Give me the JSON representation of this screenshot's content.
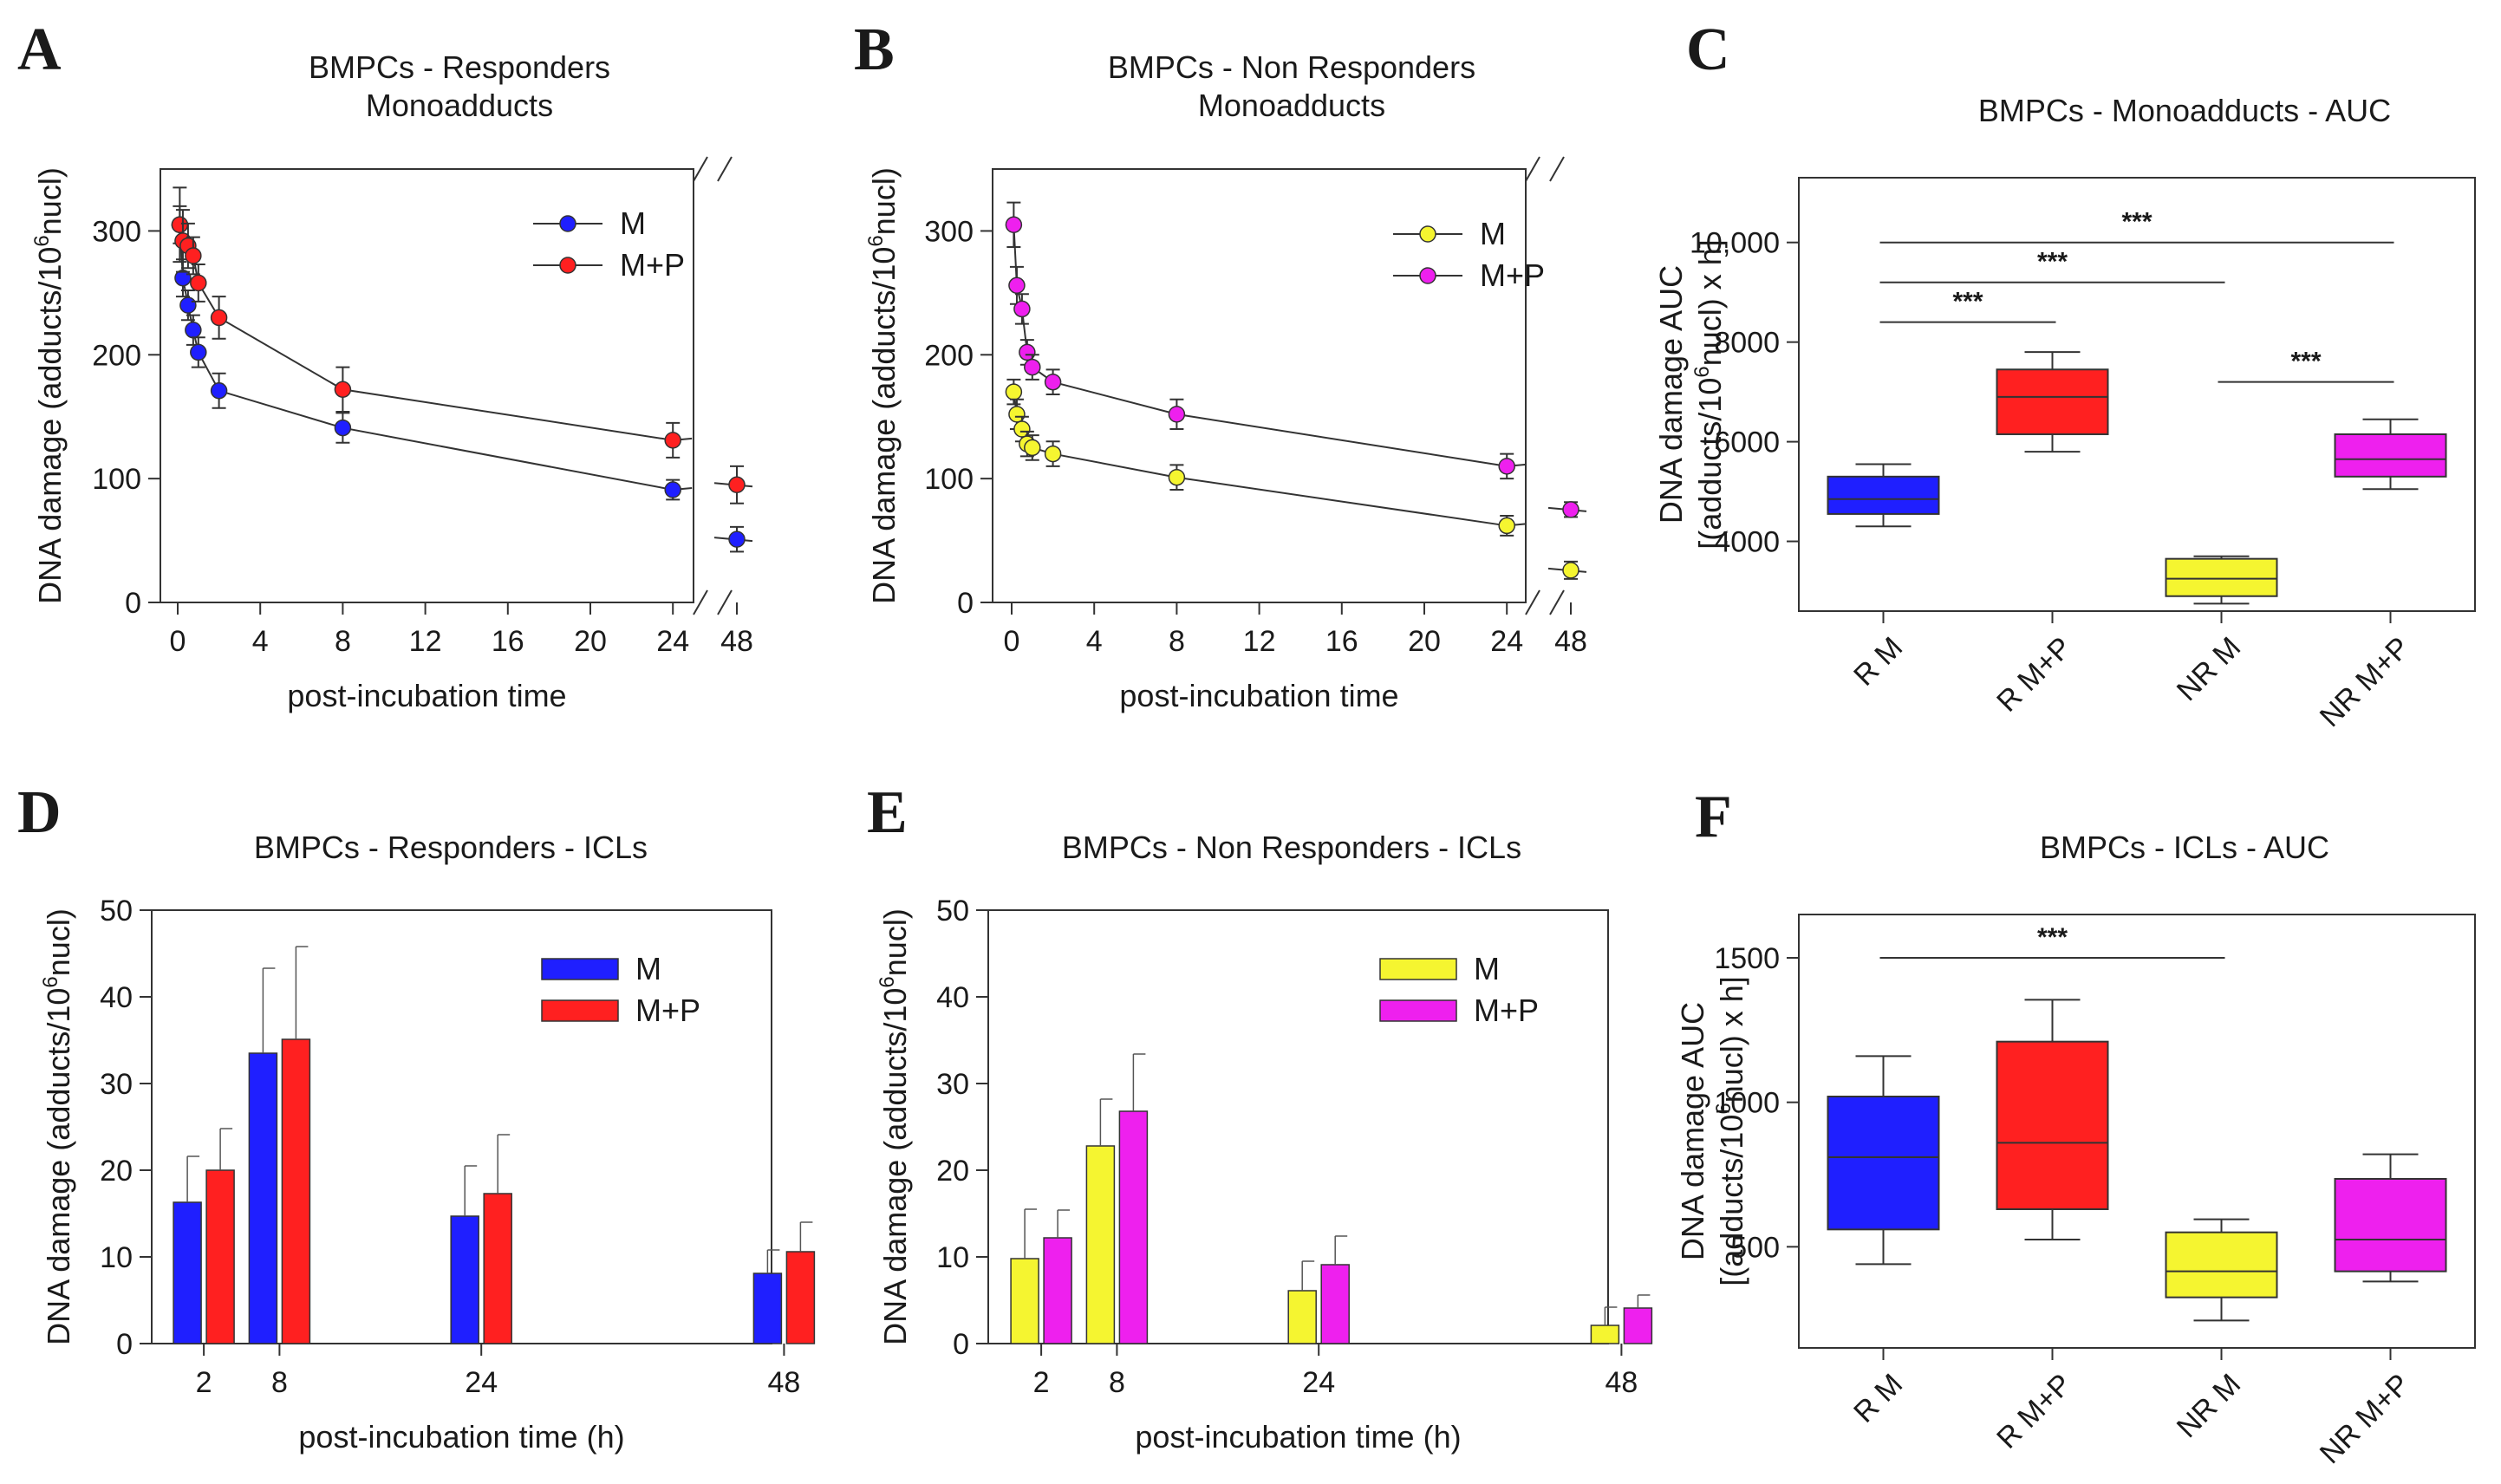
{
  "panels": {
    "A": {
      "letter": "A",
      "chart_data": {
        "type": "line",
        "title": [
          "BMPCs - Responders",
          "Monoadducts"
        ],
        "xlabel": "post-incubation time",
        "ylabel_parts": [
          "DNA damage (adducts/10",
          "6",
          "nucl)"
        ],
        "xticks": [
          "0",
          "4",
          "8",
          "12",
          "16",
          "20",
          "24",
          "48"
        ],
        "yticks": [
          "0",
          "100",
          "200",
          "300"
        ],
        "ylim": [
          0,
          350
        ],
        "x_break_after": 24,
        "series": [
          {
            "name": "M",
            "color": "#1f1fff",
            "x": [
              0.1,
              0.25,
              0.5,
              0.75,
              1,
              2,
              8,
              24
            ],
            "y": [
              305,
              262,
              240,
              220,
              202,
              171,
              141,
              91
            ],
            "err": [
              15,
              15,
              12,
              12,
              12,
              14,
              12,
              8
            ],
            "after_break": {
              "x": 48,
              "y": 51,
              "err": 10
            }
          },
          {
            "name": "M+P",
            "color": "#ff2020",
            "x": [
              0.1,
              0.25,
              0.5,
              0.75,
              1,
              2,
              8,
              24
            ],
            "y": [
              305,
              292,
              288,
              280,
              258,
              230,
              172,
              131
            ],
            "err": [
              30,
              25,
              18,
              15,
              15,
              17,
              18,
              14
            ],
            "after_break": {
              "x": 48,
              "y": 95,
              "err": 15
            }
          }
        ],
        "legend": [
          "M",
          "M+P"
        ]
      }
    },
    "B": {
      "letter": "B",
      "chart_data": {
        "type": "line",
        "title": [
          "BMPCs - Non Responders",
          "Monoadducts"
        ],
        "xlabel": "post-incubation time",
        "ylabel_parts": [
          "DNA damage (adducts/10",
          "6",
          "nucl)"
        ],
        "xticks": [
          "0",
          "4",
          "8",
          "12",
          "16",
          "20",
          "24",
          "48"
        ],
        "yticks": [
          "0",
          "100",
          "200",
          "300"
        ],
        "ylim": [
          0,
          350
        ],
        "x_break_after": 24,
        "series": [
          {
            "name": "M",
            "color": "#f5f530",
            "x": [
              0.1,
              0.25,
              0.5,
              0.75,
              1,
              2,
              8,
              24
            ],
            "y": [
              170,
              152,
              140,
              128,
              125,
              120,
              101,
              62
            ],
            "err": [
              10,
              12,
              10,
              10,
              10,
              10,
              10,
              8
            ],
            "after_break": {
              "x": 48,
              "y": 26,
              "err": 7
            }
          },
          {
            "name": "M+P",
            "color": "#ee20ee",
            "x": [
              0.1,
              0.25,
              0.5,
              0.75,
              1,
              2,
              8,
              24
            ],
            "y": [
              305,
              256,
              237,
              202,
              190,
              178,
              152,
              110
            ],
            "err": [
              18,
              15,
              12,
              10,
              10,
              10,
              12,
              10
            ],
            "after_break": {
              "x": 48,
              "y": 75,
              "err": 6
            }
          }
        ],
        "legend": [
          "M",
          "M+P"
        ]
      }
    },
    "C": {
      "letter": "C",
      "chart_data": {
        "type": "box",
        "title": "BMPCs - Monoadducts - AUC",
        "ylabel_line1_parts": [
          "DNA damage AUC"
        ],
        "ylabel_line2_parts": [
          "[(adducts/10",
          "6",
          "nucl) x h]"
        ],
        "ylim": [
          2600,
          11300
        ],
        "yticks": [
          "4000",
          "6000",
          "8000",
          "10,000"
        ],
        "yticks_values": [
          4000,
          6000,
          8000,
          10000
        ],
        "categories": [
          "R M",
          "R M+P",
          "NR M",
          "NR M+P"
        ],
        "boxes": [
          {
            "label": "R M",
            "color": "#1f1fff",
            "min": 4300,
            "q1": 4550,
            "median": 4850,
            "q3": 5300,
            "max": 5550
          },
          {
            "label": "R M+P",
            "color": "#ff2020",
            "min": 5800,
            "q1": 6150,
            "median": 6900,
            "q3": 7450,
            "max": 7800
          },
          {
            "label": "NR M",
            "color": "#f5f530",
            "min": 2750,
            "q1": 2900,
            "median": 3250,
            "q3": 3650,
            "max": 3700
          },
          {
            "label": "NR M+P",
            "color": "#ee20ee",
            "min": 5050,
            "q1": 5300,
            "median": 5650,
            "q3": 6150,
            "max": 6450
          }
        ],
        "significance": [
          {
            "from": 0,
            "to": 3,
            "y": 10000,
            "label": "***"
          },
          {
            "from": 0,
            "to": 2,
            "y": 9200,
            "label": "***"
          },
          {
            "from": 0,
            "to": 1,
            "y": 8400,
            "label": "***"
          },
          {
            "from": 2,
            "to": 3,
            "y": 7200,
            "label": "***"
          }
        ]
      }
    },
    "D": {
      "letter": "D",
      "chart_data": {
        "type": "bar",
        "title": "BMPCs - Responders - ICLs",
        "xlabel": "post-incubation time (h)",
        "ylabel_parts": [
          "DNA damage (adducts/10",
          "6",
          "nucl)"
        ],
        "categories": [
          "2",
          "8",
          "24",
          "48"
        ],
        "x_positions": [
          2,
          8,
          24,
          48
        ],
        "yticks": [
          "0",
          "10",
          "20",
          "30",
          "40",
          "50"
        ],
        "ylim": [
          0,
          50
        ],
        "series": [
          {
            "name": "M",
            "color": "#1f1fff",
            "values": [
              16.3,
              33.5,
              14.7,
              8.1
            ],
            "err": [
              5.3,
              9.8,
              5.8,
              2.7
            ]
          },
          {
            "name": "M+P",
            "color": "#ff2020",
            "values": [
              20.0,
              35.1,
              17.3,
              10.6
            ],
            "err": [
              4.8,
              10.7,
              6.8,
              3.4
            ]
          }
        ],
        "legend": [
          "M",
          "M+P"
        ]
      }
    },
    "E": {
      "letter": "E",
      "chart_data": {
        "type": "bar",
        "title": "BMPCs - Non Responders - ICLs",
        "xlabel": "post-incubation time (h)",
        "ylabel_parts": [
          "DNA damage (adducts/10",
          "6",
          "nucl)"
        ],
        "categories": [
          "2",
          "8",
          "24",
          "48"
        ],
        "x_positions": [
          2,
          8,
          24,
          48
        ],
        "yticks": [
          "0",
          "10",
          "20",
          "30",
          "40",
          "50"
        ],
        "ylim": [
          0,
          50
        ],
        "series": [
          {
            "name": "M",
            "color": "#f5f530",
            "values": [
              9.8,
              22.8,
              6.1,
              2.1
            ],
            "err": [
              5.7,
              5.4,
              3.4,
              2.1
            ]
          },
          {
            "name": "M+P",
            "color": "#ee20ee",
            "values": [
              12.2,
              26.8,
              9.1,
              4.1
            ],
            "err": [
              3.2,
              6.6,
              3.3,
              1.5
            ]
          }
        ],
        "legend": [
          "M",
          "M+P"
        ]
      }
    },
    "F": {
      "letter": "F",
      "chart_data": {
        "type": "box",
        "title": "BMPCs - ICLs - AUC",
        "ylabel_line1_parts": [
          "DNA damage AUC"
        ],
        "ylabel_line2_parts": [
          "[(adducts/10",
          "6",
          "nucl) x h]"
        ],
        "ylim": [
          150,
          1650
        ],
        "yticks": [
          "500",
          "1000",
          "1500"
        ],
        "yticks_values": [
          500,
          1000,
          1500
        ],
        "categories": [
          "R M",
          "R M+P",
          "NR M",
          "NR M+P"
        ],
        "boxes": [
          {
            "label": "R M",
            "color": "#1f1fff",
            "min": 440,
            "q1": 560,
            "median": 810,
            "q3": 1020,
            "max": 1160
          },
          {
            "label": "R M+P",
            "color": "#ff2020",
            "min": 525,
            "q1": 630,
            "median": 860,
            "q3": 1210,
            "max": 1355
          },
          {
            "label": "NR M",
            "color": "#f5f530",
            "min": 245,
            "q1": 325,
            "median": 415,
            "q3": 550,
            "max": 595
          },
          {
            "label": "NR M+P",
            "color": "#ee20ee",
            "min": 380,
            "q1": 415,
            "median": 525,
            "q3": 735,
            "max": 820
          }
        ],
        "significance": [
          {
            "from": 0,
            "to": 2,
            "y": 1500,
            "label": "***"
          }
        ]
      }
    }
  }
}
